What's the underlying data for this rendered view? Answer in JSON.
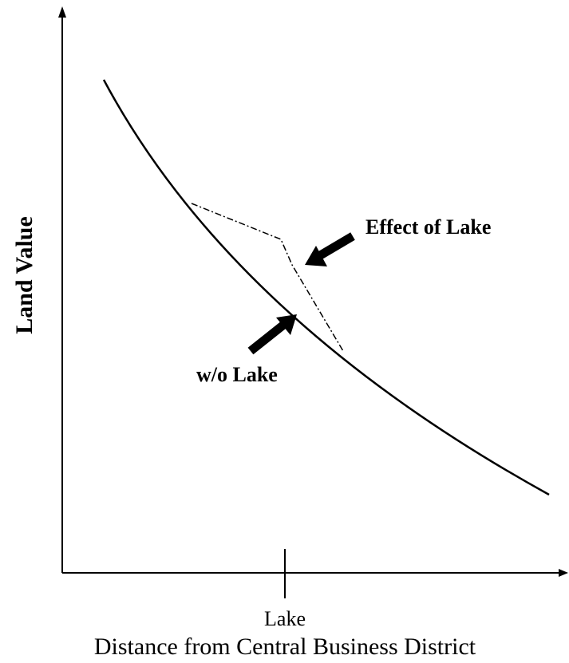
{
  "axes": {
    "y_label": "Land Value",
    "x_label": "Distance from Central Business District",
    "x_tick_label": "Lake"
  },
  "annotations": {
    "with_lake": "Effect of Lake",
    "without_lake": "w/o Lake"
  }
}
